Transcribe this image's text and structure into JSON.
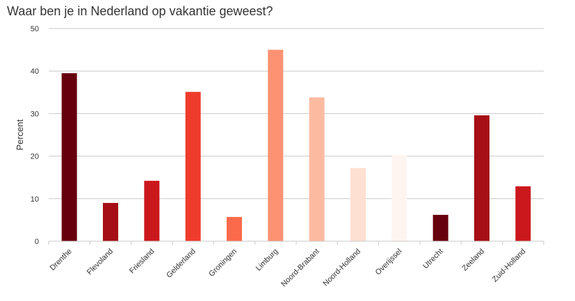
{
  "chart_data": {
    "type": "bar",
    "title": "Waar ben je in Nederland op vakantie geweest?",
    "xlabel": "",
    "ylabel": "Percent",
    "ylim": [
      0,
      50
    ],
    "yticks": [
      0,
      10,
      20,
      30,
      40,
      50
    ],
    "grid": true,
    "categories": [
      "Drenthe",
      "Flevoland",
      "Friesland",
      "Gelderland",
      "Groningen",
      "Limburg",
      "Noord-Brabant",
      "Noord-Holland",
      "Overijssel",
      "Utrecht",
      "Zeeland",
      "Zuid-Holland"
    ],
    "values": [
      39.5,
      9,
      14.2,
      35.1,
      5.7,
      45,
      33.8,
      17.2,
      20.2,
      6.2,
      29.6,
      12.9
    ],
    "colors": [
      "#67000d",
      "#a50f15",
      "#cb181d",
      "#ef3b2c",
      "#fb6a4a",
      "#fc9272",
      "#fcbba1",
      "#fee0d2",
      "#fff5f0",
      "#67000d",
      "#a50f15",
      "#cb181d"
    ]
  }
}
